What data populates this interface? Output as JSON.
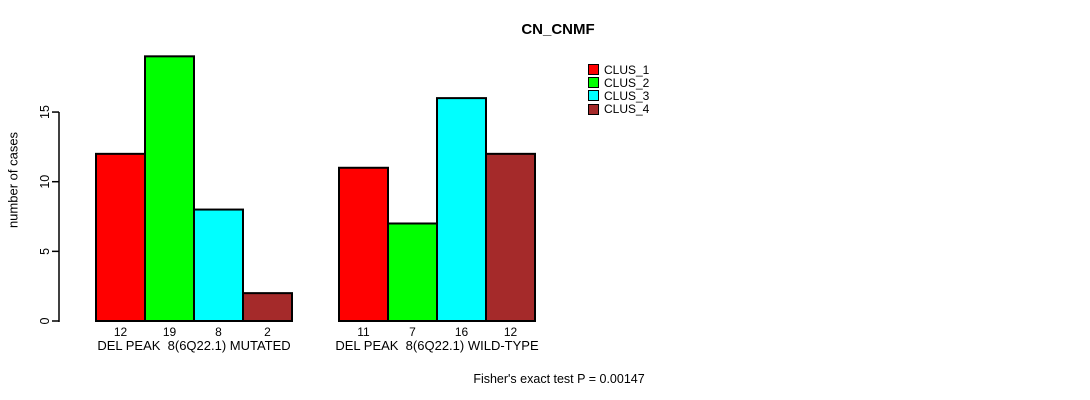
{
  "title": "CN_CNMF",
  "ylabel": "number of cases",
  "chart_data": {
    "type": "bar",
    "title": "CN_CNMF",
    "xlabel": "",
    "ylabel": "number of cases",
    "ylim": [
      0,
      19
    ],
    "yticks": [
      0,
      5,
      10,
      15
    ],
    "grid": false,
    "legend_position": "top-right",
    "bar_value_labels": true,
    "categories": [
      "DEL PEAK  8(6Q22.1) MUTATED",
      "DEL PEAK  8(6Q22.1) WILD-TYPE"
    ],
    "series": [
      {
        "name": "CLUS_1",
        "color": "#ff0000",
        "values": [
          12,
          11
        ]
      },
      {
        "name": "CLUS_2",
        "color": "#00ff00",
        "values": [
          19,
          7
        ]
      },
      {
        "name": "CLUS_3",
        "color": "#00ffff",
        "values": [
          8,
          16
        ]
      },
      {
        "name": "CLUS_4",
        "color": "#a52a2a",
        "values": [
          2,
          12
        ]
      }
    ],
    "annotation": "Fisher's exact test P = 0.00147"
  }
}
